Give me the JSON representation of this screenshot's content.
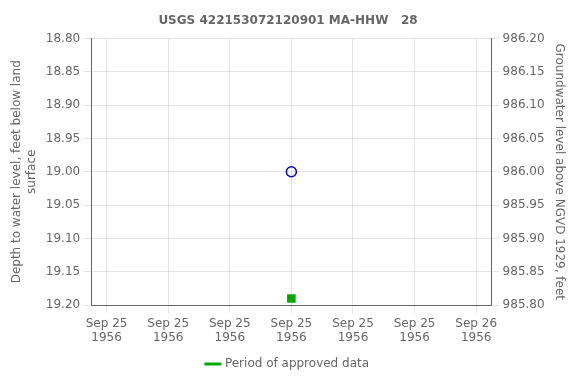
{
  "chart_data": {
    "type": "scatter",
    "title": "USGS 422153072120901 MA-HHW   28",
    "ylabel": "Depth to water level, feet below land\nsurface",
    "y2label": "Groundwater level above NGVD 1929, feet",
    "xlim": [
      -1,
      25
    ],
    "xticks": [
      {
        "value": 0,
        "label": "Sep 25\n1956"
      },
      {
        "value": 4,
        "label": "Sep 25\n1956"
      },
      {
        "value": 8,
        "label": "Sep 25\n1956"
      },
      {
        "value": 12,
        "label": "Sep 25\n1956"
      },
      {
        "value": 16,
        "label": "Sep 25\n1956"
      },
      {
        "value": 20,
        "label": "Sep 25\n1956"
      },
      {
        "value": 24,
        "label": "Sep 26\n1956"
      }
    ],
    "ylim": [
      19.2,
      18.8
    ],
    "yticks": [
      {
        "value": 18.8,
        "label": "18.80"
      },
      {
        "value": 18.85,
        "label": "18.85"
      },
      {
        "value": 18.9,
        "label": "18.90"
      },
      {
        "value": 18.95,
        "label": "18.95"
      },
      {
        "value": 19.0,
        "label": "19.00"
      },
      {
        "value": 19.05,
        "label": "19.05"
      },
      {
        "value": 19.1,
        "label": "19.10"
      },
      {
        "value": 19.15,
        "label": "19.15"
      },
      {
        "value": 19.2,
        "label": "19.20"
      }
    ],
    "y2lim": [
      985.8,
      986.2
    ],
    "y2ticks": [
      {
        "value": 986.2,
        "label": "986.20"
      },
      {
        "value": 986.15,
        "label": "986.15"
      },
      {
        "value": 986.1,
        "label": "986.10"
      },
      {
        "value": 986.05,
        "label": "986.05"
      },
      {
        "value": 986.0,
        "label": "986.00"
      },
      {
        "value": 985.95,
        "label": "985.95"
      },
      {
        "value": 985.9,
        "label": "985.90"
      },
      {
        "value": 985.85,
        "label": "985.85"
      },
      {
        "value": 985.8,
        "label": "985.80"
      }
    ],
    "grid": true,
    "legend": "bottom",
    "series": [
      {
        "color": "#0000cc",
        "marker": "circle",
        "x": [
          12.0
        ],
        "values": [
          19.0
        ]
      },
      {
        "color": "#00aa00",
        "marker": "square",
        "x": [
          12.0
        ],
        "values": [
          19.19
        ]
      },
      {
        "name": "Period of approved data",
        "color": "#00aa00",
        "type": "line",
        "line_style": "solid",
        "x": [],
        "values": []
      }
    ]
  }
}
